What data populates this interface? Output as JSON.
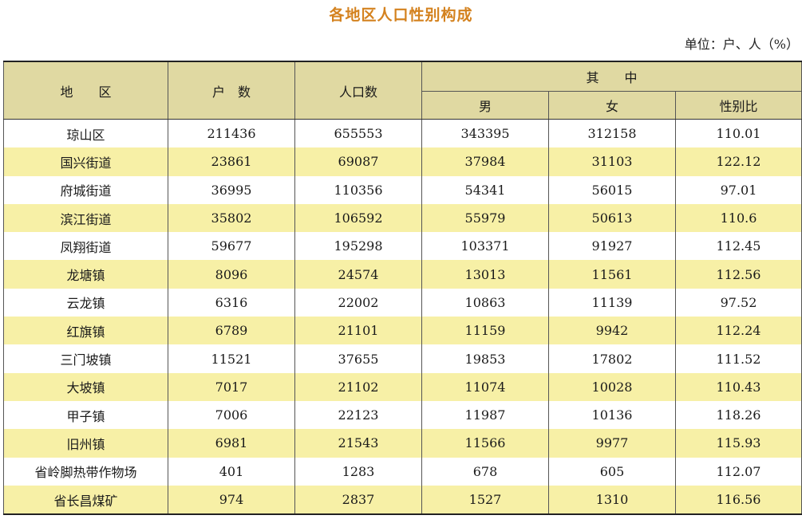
{
  "title": "各地区人口性别构成",
  "unit": "单位：户、人（%）",
  "headers": {
    "region": "地　　区",
    "households": "户　数",
    "population": "人口数",
    "of_which": "其　　中",
    "male": "男",
    "female": "女",
    "sex_ratio": "性别比"
  },
  "rows": [
    {
      "region": "琼山区",
      "households": "211436",
      "population": "655553",
      "male": "343395",
      "female": "312158",
      "sex_ratio": "110.01"
    },
    {
      "region": "国兴街道",
      "households": "23861",
      "population": "69087",
      "male": "37984",
      "female": "31103",
      "sex_ratio": "122.12"
    },
    {
      "region": "府城街道",
      "households": "36995",
      "population": "110356",
      "male": "54341",
      "female": "56015",
      "sex_ratio": "97.01"
    },
    {
      "region": "滨江街道",
      "households": "35802",
      "population": "106592",
      "male": "55979",
      "female": "50613",
      "sex_ratio": "110.6"
    },
    {
      "region": "凤翔街道",
      "households": "59677",
      "population": "195298",
      "male": "103371",
      "female": "91927",
      "sex_ratio": "112.45"
    },
    {
      "region": "龙塘镇",
      "households": "8096",
      "population": "24574",
      "male": "13013",
      "female": "11561",
      "sex_ratio": "112.56"
    },
    {
      "region": "云龙镇",
      "households": "6316",
      "population": "22002",
      "male": "10863",
      "female": "11139",
      "sex_ratio": "97.52"
    },
    {
      "region": "红旗镇",
      "households": "6789",
      "population": "21101",
      "male": "11159",
      "female": "9942",
      "sex_ratio": "112.24"
    },
    {
      "region": "三门坡镇",
      "households": "11521",
      "population": "37655",
      "male": "19853",
      "female": "17802",
      "sex_ratio": "111.52"
    },
    {
      "region": "大坡镇",
      "households": "7017",
      "population": "21102",
      "male": "11074",
      "female": "10028",
      "sex_ratio": "110.43"
    },
    {
      "region": "甲子镇",
      "households": "7006",
      "population": "22123",
      "male": "11987",
      "female": "10136",
      "sex_ratio": "118.26"
    },
    {
      "region": "旧州镇",
      "households": "6981",
      "population": "21543",
      "male": "11566",
      "female": "9977",
      "sex_ratio": "115.93"
    },
    {
      "region": "省岭脚热带作物场",
      "households": "401",
      "population": "1283",
      "male": "678",
      "female": "605",
      "sex_ratio": "112.07"
    },
    {
      "region": "省长昌煤矿",
      "households": "974",
      "population": "2837",
      "male": "1527",
      "female": "1310",
      "sex_ratio": "116.56"
    }
  ]
}
